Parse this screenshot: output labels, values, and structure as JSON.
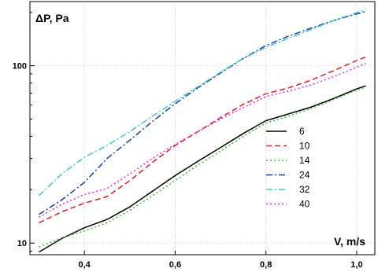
{
  "chart_data": {
    "type": "line",
    "title": "",
    "xlabel": "V, m/s",
    "ylabel": "ΔP, Pa",
    "xlim": [
      0.28,
      1.04
    ],
    "ylim": [
      8.6,
      230
    ],
    "yscale": "log",
    "grid": true,
    "legend_position": "center-right",
    "x_ticks": [
      {
        "value": 0.4,
        "label": "0,4"
      },
      {
        "value": 0.6,
        "label": "0,6"
      },
      {
        "value": 0.8,
        "label": "0,8"
      },
      {
        "value": 1.0,
        "label": "1,0"
      }
    ],
    "y_ticks": [
      {
        "value": 10,
        "label": "10"
      },
      {
        "value": 100,
        "label": "100"
      }
    ],
    "x": [
      0.3,
      0.35,
      0.4,
      0.45,
      0.5,
      0.55,
      0.6,
      0.65,
      0.7,
      0.75,
      0.8,
      0.85,
      0.9,
      0.95,
      1.0,
      1.02
    ],
    "series": [
      {
        "name": "6",
        "color": "#000000",
        "dash": "solid",
        "values": [
          8.9,
          10.6,
          12.2,
          13.6,
          16.0,
          19.6,
          24.0,
          28.9,
          34.6,
          41.5,
          49.0,
          53.5,
          58.5,
          65.5,
          74.0,
          77.0
        ]
      },
      {
        "name": "10",
        "color": "#e41a1c",
        "dash": "dash",
        "values": [
          13.0,
          15.0,
          16.8,
          18.3,
          22.5,
          28.5,
          35.5,
          42.5,
          51.0,
          60.5,
          69.5,
          75.0,
          83.0,
          94.0,
          107.0,
          112.0
        ]
      },
      {
        "name": "14",
        "color": "#33bb33",
        "dash": "dot",
        "values": [
          9.5,
          10.7,
          11.7,
          13.0,
          15.3,
          18.5,
          22.5,
          27.5,
          33.0,
          40.0,
          47.5,
          52.0,
          57.5,
          64.5,
          73.0,
          75.5
        ]
      },
      {
        "name": "24",
        "color": "#1f3ca0",
        "dash": "dashdot",
        "values": [
          14.5,
          17.5,
          22.0,
          30.0,
          38.0,
          48.5,
          61.0,
          75.0,
          91.0,
          110.0,
          130.0,
          147.0,
          163.0,
          180.0,
          196.0,
          202.0
        ]
      },
      {
        "name": "32",
        "color": "#33cccc",
        "dash": "dashdot",
        "values": [
          18.5,
          24.5,
          30.5,
          35.5,
          42.5,
          52.0,
          63.0,
          76.0,
          92.0,
          110.0,
          127.0,
          143.0,
          160.0,
          180.0,
          199.0,
          207.0
        ]
      },
      {
        "name": "40",
        "color": "#ee22ee",
        "dash": "dot",
        "values": [
          14.0,
          16.5,
          18.8,
          20.3,
          24.5,
          30.0,
          36.0,
          42.5,
          50.0,
          58.0,
          67.0,
          72.0,
          78.0,
          87.0,
          98.0,
          103.0
        ]
      }
    ]
  }
}
